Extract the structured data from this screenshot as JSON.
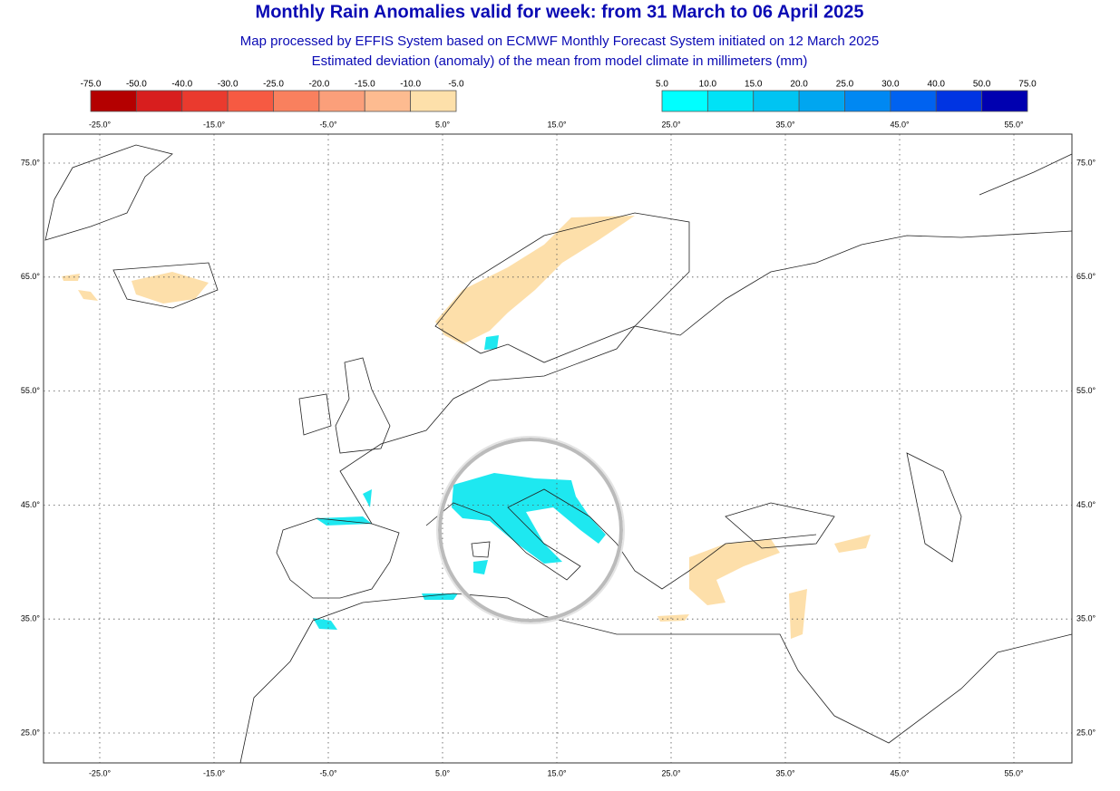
{
  "header": {
    "title": "Monthly Rain Anomalies valid for week: from 31 March to 06 April 2025",
    "subtitle": "Map processed by EFFIS System based on ECMWF Monthly Forecast System initiated on 12 March 2025",
    "description": "Estimated deviation (anomaly) of the mean from model climate in millimeters (mm)"
  },
  "legend": {
    "negative": {
      "labels": [
        "-75.0",
        "-50.0",
        "-40.0",
        "-30.0",
        "-25.0",
        "-20.0",
        "-15.0",
        "-10.0",
        "-5.0"
      ],
      "colors": [
        "#b40000",
        "#d81e1e",
        "#ea3a2e",
        "#f65a42",
        "#f9805e",
        "#fb9f7a",
        "#fdbb90",
        "#fde0aa"
      ]
    },
    "positive": {
      "labels": [
        "5.0",
        "10.0",
        "15.0",
        "20.0",
        "25.0",
        "30.0",
        "40.0",
        "50.0",
        "75.0"
      ],
      "colors": [
        "#00ffff",
        "#00e2f6",
        "#00c4f2",
        "#00a6f0",
        "#0088f2",
        "#0062f0",
        "#0034e2",
        "#0000b0"
      ]
    }
  },
  "map": {
    "lon_labels": [
      "-25.0°",
      "-15.0°",
      "-5.0°",
      "5.0°",
      "15.0°",
      "25.0°",
      "35.0°",
      "45.0°",
      "55.0°"
    ],
    "lat_labels": [
      "75.0°",
      "65.0°",
      "55.0°",
      "45.0°",
      "35.0°",
      "25.0°"
    ]
  }
}
